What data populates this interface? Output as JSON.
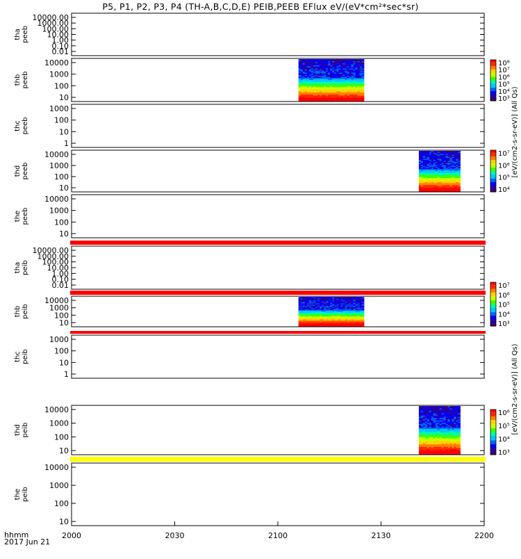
{
  "title": "P5, P1, P2, P3, P4 (TH-A,B,C,D,E) PEIB,PEEB EFlux eV/(eV*cm²*sec*sr)",
  "x_footer": {
    "line1": "hhmm",
    "line2": "2017 Jun 21"
  },
  "colorbar_labels": {
    "group_peeb": "[eV/(cm2-s-sr-eV)] (All Qs)",
    "group_peib": "[eV/(cm2-s-sr-eV)] (All Qs)"
  },
  "chart_data": [
    {
      "type": "heatmap",
      "panel": "tha_peeb",
      "ylabel": [
        "tha",
        "peeb"
      ],
      "yscale": "log",
      "yticks": [
        "10000.00",
        "1000.00",
        "100.00",
        "10.00",
        "1.00",
        "0.10",
        "0.01"
      ],
      "ylim": [
        0.01,
        10000
      ],
      "data_present": false,
      "time_ranges": []
    },
    {
      "type": "heatmap",
      "panel": "thb_peeb",
      "ylabel": [
        "thb",
        "peeb"
      ],
      "yscale": "log",
      "yticks": [
        "10000",
        "1000",
        "100",
        "10"
      ],
      "ylim": [
        7,
        30000
      ],
      "data_present": true,
      "time_ranges": [
        [
          "2106",
          "2125"
        ]
      ],
      "colorbar": {
        "scale": "log",
        "ticks": [
          "10³",
          "10⁴",
          "10⁵",
          "10⁶",
          "10⁷",
          "10⁸"
        ]
      }
    },
    {
      "type": "heatmap",
      "panel": "thc_peeb",
      "ylabel": [
        "thc",
        "peeb"
      ],
      "yscale": "log",
      "yticks": [
        "1000",
        "100",
        "10",
        "1"
      ],
      "ylim": [
        1,
        2000
      ],
      "data_present": false,
      "time_ranges": []
    },
    {
      "type": "heatmap",
      "panel": "thd_peeb",
      "ylabel": [
        "thd",
        "peeb"
      ],
      "yscale": "log",
      "yticks": [
        "10000",
        "1000",
        "100",
        "10"
      ],
      "ylim": [
        7,
        30000
      ],
      "data_present": true,
      "time_ranges": [
        [
          "2141",
          "2153"
        ]
      ],
      "colorbar": {
        "scale": "log",
        "ticks": [
          "10⁴",
          "10⁵",
          "10⁶",
          "10⁷"
        ]
      }
    },
    {
      "type": "heatmap",
      "panel": "the_peeb",
      "ylabel": [
        "the",
        "peeb"
      ],
      "yscale": "log",
      "yticks": [
        "10000",
        "1000",
        "100",
        "10"
      ],
      "ylim": [
        5,
        30000
      ],
      "data_present": false,
      "time_ranges": []
    },
    {
      "type": "heatmap",
      "panel": "tha_peib",
      "ylabel": [
        "tha",
        "peib"
      ],
      "yscale": "log",
      "yticks": [
        "10000.00",
        "1000.00",
        "100.00",
        "10.00",
        "1.00",
        "0.10",
        "0.01"
      ],
      "ylim": [
        0.01,
        10000
      ],
      "data_present": false,
      "time_ranges": []
    },
    {
      "type": "heatmap",
      "panel": "thb_peib",
      "ylabel": [
        "thb",
        "peib"
      ],
      "yscale": "log",
      "yticks": [
        "10000",
        "1000",
        "100",
        "10"
      ],
      "ylim": [
        6,
        30000
      ],
      "data_present": true,
      "time_ranges": [
        [
          "2106",
          "2125"
        ]
      ],
      "colorbar": {
        "scale": "log",
        "ticks": [
          "10³",
          "10⁴",
          "10⁵",
          "10⁶",
          "10⁷"
        ]
      }
    },
    {
      "type": "heatmap",
      "panel": "thc_peib",
      "ylabel": [
        "thc",
        "peib"
      ],
      "yscale": "log",
      "yticks": [
        "1000",
        "100",
        "10",
        "1"
      ],
      "ylim": [
        0.5,
        2000
      ],
      "data_present": false,
      "time_ranges": []
    },
    {
      "type": "heatmap",
      "panel": "thd_peib",
      "ylabel": [
        "thd",
        "peib"
      ],
      "yscale": "log",
      "yticks": [
        "10000",
        "1000",
        "100",
        "10"
      ],
      "ylim": [
        5,
        30000
      ],
      "data_present": true,
      "time_ranges": [
        [
          "2141",
          "2153"
        ]
      ],
      "colorbar": {
        "scale": "log",
        "ticks": [
          "10³",
          "10⁴",
          "10⁵",
          "10⁶"
        ]
      }
    },
    {
      "type": "heatmap",
      "panel": "the_peib",
      "ylabel": [
        "the",
        "peib"
      ],
      "yscale": "log",
      "yticks": [
        "10000",
        "1000",
        "100",
        "10"
      ],
      "ylim": [
        5,
        30000
      ],
      "data_present": false,
      "time_ranges": []
    }
  ],
  "x_axis": {
    "ticks": [
      "2000",
      "2030",
      "2100",
      "2130",
      "2200"
    ],
    "range": [
      "2000",
      "2200"
    ]
  },
  "bars": [
    {
      "name": "peib-bar-1",
      "color": "#ff0000"
    },
    {
      "name": "peib-bar-2",
      "color": "#ff0000"
    },
    {
      "name": "peib-bar-3",
      "color": "#ff0000"
    },
    {
      "name": "peib-bar-4",
      "color": "#ffff00"
    }
  ],
  "colormap": [
    "#3a0a57",
    "#2d00a0",
    "#0000ff",
    "#0064ff",
    "#00c8ff",
    "#00ffa0",
    "#40ff00",
    "#c8ff00",
    "#ffd200",
    "#ff8000",
    "#ff2800",
    "#ff0000"
  ]
}
